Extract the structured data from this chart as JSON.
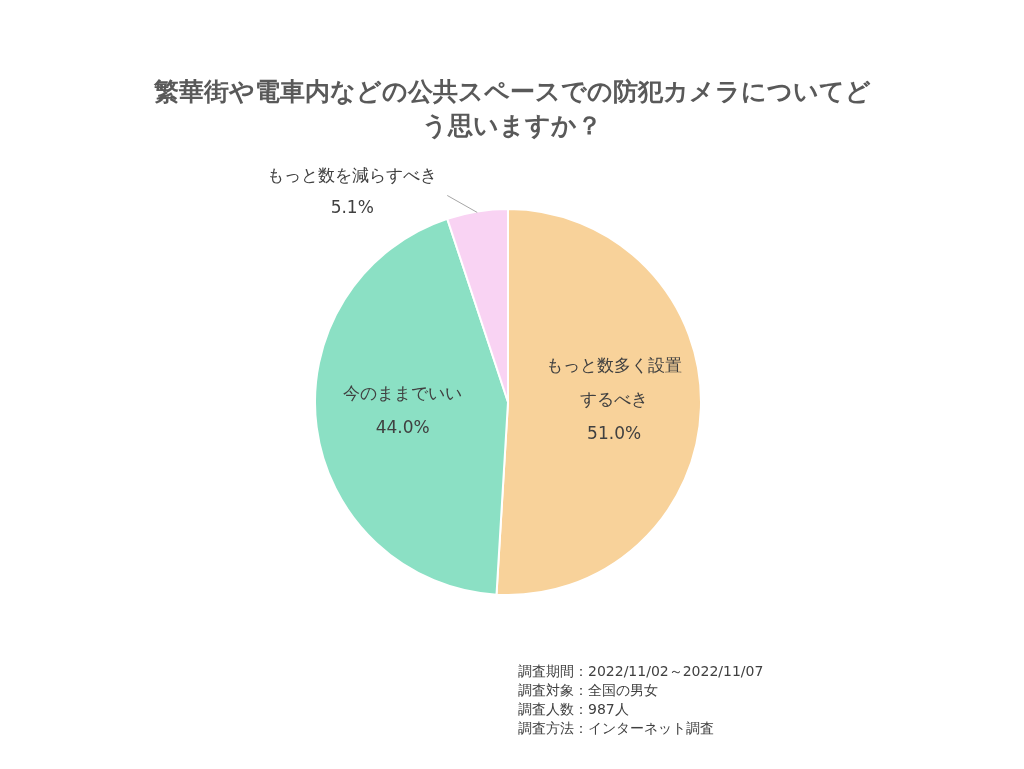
{
  "chart_data": {
    "type": "pie",
    "title": "繁華街や電車内などの公共スペースでの防犯カメラについてどう思いますか？",
    "categories": [
      "もっと数多く設置するべき",
      "今のままでいい",
      "もっと数を減らすべき"
    ],
    "values": [
      51.0,
      44.0,
      5.1
    ],
    "colors": [
      "#f8d29a",
      "#8be0c4",
      "#f9d3f3"
    ],
    "value_labels": [
      "51.0%",
      "44.0%",
      "5.1%"
    ],
    "annotations": [
      "調査期間：2022/11/02～2022/11/07",
      "調査対象：全国の男女",
      "調査人数：987人",
      "調査方法：インターネット調査"
    ]
  }
}
